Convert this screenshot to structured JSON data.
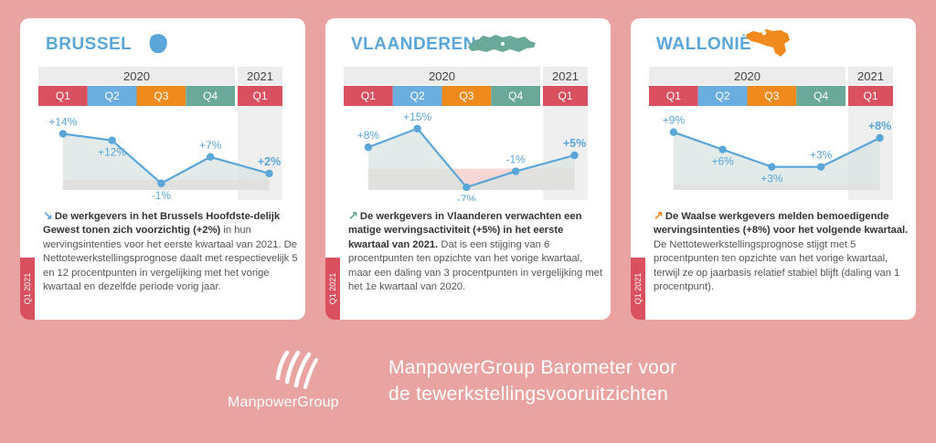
{
  "cards": [
    {
      "region": "BRUSSEL",
      "year_2020": "2020",
      "year_2021": "2021",
      "quarters_2020": [
        "Q1",
        "Q2",
        "Q3",
        "Q4"
      ],
      "quarter_2021": "Q1",
      "chart_data": {
        "type": "area",
        "x": [
          "Q1 2020",
          "Q2 2020",
          "Q3 2020",
          "Q4 2020",
          "Q1 2021"
        ],
        "values": [
          14,
          12,
          -1,
          7,
          2
        ],
        "labels": [
          "+14%",
          "+12%",
          "-1%",
          "+7%",
          "+2%"
        ],
        "ylim": [
          -3,
          18
        ],
        "highlight_last": true
      },
      "arrow": "↘",
      "arrow_color": "#5aa6d9",
      "lead": "De werkgevers in het Brussels Hoofdste-delijk Gewest tonen zich voorzichtig (+2%)",
      "body": "in hun wervingsintenties voor het eerste kwartaal van 2021. De Nettotewerkstellingsprognose daalt met respectievelijk 5 en 12 procentpunten in vergelijking met het vorige kwartaal en dezelfde periode vorig jaar.",
      "side_tab": "Q1 2021"
    },
    {
      "region": "VLAANDEREN",
      "year_2020": "2020",
      "year_2021": "2021",
      "quarters_2020": [
        "Q1",
        "Q2",
        "Q3",
        "Q4"
      ],
      "quarter_2021": "Q1",
      "chart_data": {
        "type": "area",
        "x": [
          "Q1 2020",
          "Q2 2020",
          "Q3 2020",
          "Q4 2020",
          "Q1 2021"
        ],
        "values": [
          8,
          15,
          -7,
          -1,
          5
        ],
        "labels": [
          "+8%",
          "+15%",
          "-7%",
          "-1%",
          "+5%"
        ],
        "ylim": [
          -8,
          18
        ],
        "highlight_last": true
      },
      "arrow": "↗",
      "arrow_color": "#6aa89a",
      "lead": "De werkgevers in Vlaanderen verwachten een matige wervingsactiviteit (+5%) in het eerste kwartaal van 2021.",
      "body": "Dat is een stijging van 6 procentpunten ten opzichte van het vorige kwartaal, maar een daling van 3 procentpunten in vergelijking met het 1e kwartaal van 2020.",
      "side_tab": "Q1 2021"
    },
    {
      "region": "WALLONIË",
      "year_2020": "2020",
      "year_2021": "2021",
      "quarters_2020": [
        "Q1",
        "Q2",
        "Q3",
        "Q4"
      ],
      "quarter_2021": "Q1",
      "chart_data": {
        "type": "area",
        "x": [
          "Q1 2020",
          "Q2 2020",
          "Q3 2020",
          "Q4 2020",
          "Q1 2021"
        ],
        "values": [
          9,
          6,
          3,
          3,
          8
        ],
        "labels": [
          "+9%",
          "+6%",
          "+3%",
          "+3%",
          "+8%"
        ],
        "ylim": [
          -1,
          11
        ],
        "highlight_last": true
      },
      "arrow": "↗",
      "arrow_color": "#f08a1c",
      "lead": "De Waalse werkgevers melden bemoedigende wervingsintenties (+8%) voor het volgende kwartaal.",
      "body": "De Nettotewerkstellingsprognose stijgt met 5 procentpunten ten opzichte van het vorige kwartaal, terwijl ze op jaarbasis relatief stabiel blijft (daling van 1 procentpunt).",
      "side_tab": "Q1 2021"
    }
  ],
  "colors": {
    "q1": "#d9505f",
    "q2": "#6aaee0",
    "q3": "#f08a1c",
    "q4": "#6aa89a",
    "line": "#5aa6d9",
    "area": "#d8e4e1",
    "negative_area": "#f6cfcf",
    "header_bg": "#ececec",
    "background": "#e9a3a1"
  },
  "footer": {
    "brand": "ManpowerGroup",
    "tagline_line1": "ManpowerGroup Barometer voor",
    "tagline_line2": "de tewerkstellingsvooruitzichten"
  }
}
